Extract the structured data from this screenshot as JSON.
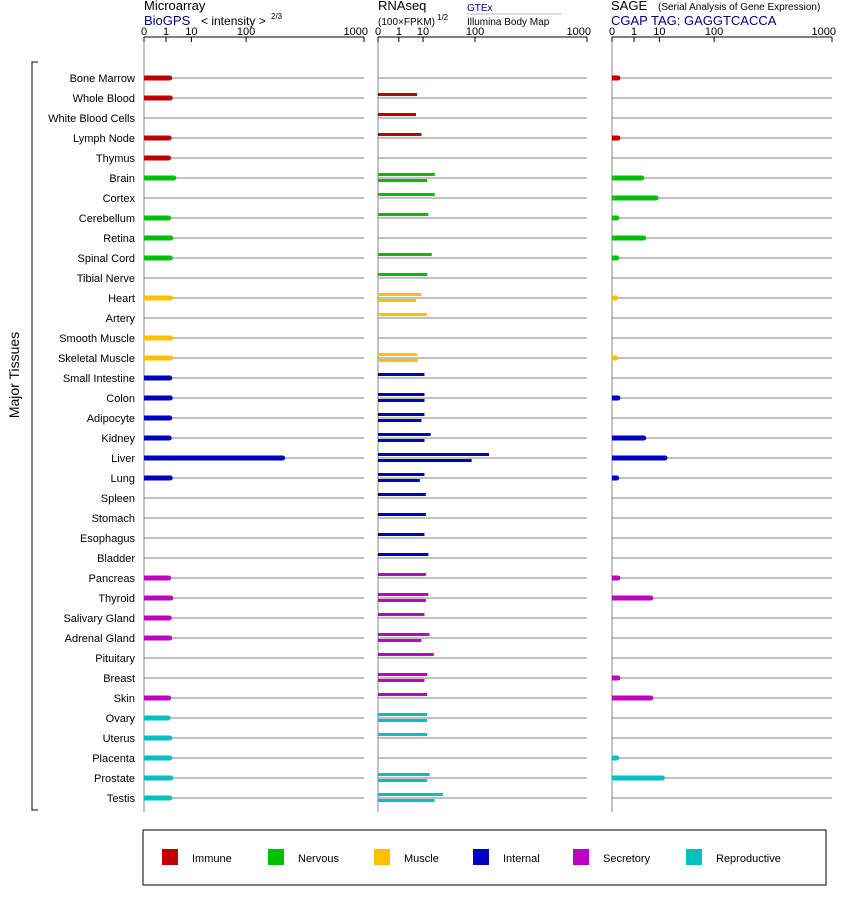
{
  "chart_data": {
    "type": "bar",
    "y_group_label": "Major Tissues",
    "x_scale": "cube-root-like (0, 1, 10, 100, 1000)",
    "legend": {
      "position": "bottom",
      "entries": [
        {
          "name": "Immune",
          "color": "#c00000"
        },
        {
          "name": "Nervous",
          "color": "#00c000"
        },
        {
          "name": "Muscle",
          "color": "#ffc000"
        },
        {
          "name": "Internal",
          "color": "#0000c0"
        },
        {
          "name": "Secretory",
          "color": "#c000c0"
        },
        {
          "name": "Reproductive",
          "color": "#00c0c0"
        }
      ]
    },
    "tissues": [
      {
        "name": "Bone Marrow",
        "category": "Immune"
      },
      {
        "name": "Whole Blood",
        "category": "Immune"
      },
      {
        "name": "White Blood Cells",
        "category": "Immune"
      },
      {
        "name": "Lymph Node",
        "category": "Immune"
      },
      {
        "name": "Thymus",
        "category": "Immune"
      },
      {
        "name": "Brain",
        "category": "Nervous"
      },
      {
        "name": "Cortex",
        "category": "Nervous"
      },
      {
        "name": "Cerebellum",
        "category": "Nervous"
      },
      {
        "name": "Retina",
        "category": "Nervous"
      },
      {
        "name": "Spinal Cord",
        "category": "Nervous"
      },
      {
        "name": "Tibial Nerve",
        "category": "Nervous"
      },
      {
        "name": "Heart",
        "category": "Muscle"
      },
      {
        "name": "Artery",
        "category": "Muscle"
      },
      {
        "name": "Smooth Muscle",
        "category": "Muscle"
      },
      {
        "name": "Skeletal Muscle",
        "category": "Muscle"
      },
      {
        "name": "Small Intestine",
        "category": "Internal"
      },
      {
        "name": "Colon",
        "category": "Internal"
      },
      {
        "name": "Adipocyte",
        "category": "Internal"
      },
      {
        "name": "Kidney",
        "category": "Internal"
      },
      {
        "name": "Liver",
        "category": "Internal"
      },
      {
        "name": "Lung",
        "category": "Internal"
      },
      {
        "name": "Spleen",
        "category": "Internal"
      },
      {
        "name": "Stomach",
        "category": "Internal"
      },
      {
        "name": "Esophagus",
        "category": "Internal"
      },
      {
        "name": "Bladder",
        "category": "Internal"
      },
      {
        "name": "Pancreas",
        "category": "Secretory"
      },
      {
        "name": "Thyroid",
        "category": "Secretory"
      },
      {
        "name": "Salivary Gland",
        "category": "Secretory"
      },
      {
        "name": "Adrenal Gland",
        "category": "Secretory"
      },
      {
        "name": "Pituitary",
        "category": "Secretory"
      },
      {
        "name": "Breast",
        "category": "Secretory"
      },
      {
        "name": "Skin",
        "category": "Secretory"
      },
      {
        "name": "Ovary",
        "category": "Reproductive"
      },
      {
        "name": "Uterus",
        "category": "Reproductive"
      },
      {
        "name": "Placenta",
        "category": "Reproductive"
      },
      {
        "name": "Prostate",
        "category": "Reproductive"
      },
      {
        "name": "Testis",
        "category": "Reproductive"
      }
    ],
    "panels": [
      {
        "title": "Microarray",
        "source": "BioGPS",
        "unit_prefix": "< intensity >",
        "unit_exponent": "2/3",
        "ticks": [
          "0",
          "1",
          "10",
          "100",
          "1000"
        ],
        "series": [
          {
            "source": "BioGPS",
            "values": [
              1.6,
              1.7,
              null,
              1.5,
              1.4,
              2.5,
              null,
              1.4,
              1.8,
              1.7,
              null,
              1.8,
              null,
              1.8,
              1.8,
              1.6,
              1.7,
              1.6,
              1.5,
              250,
              1.7,
              null,
              null,
              null,
              null,
              1.4,
              1.8,
              1.5,
              1.6,
              null,
              null,
              1.4,
              1.3,
              1.6,
              1.6,
              1.8,
              1.6
            ]
          }
        ]
      },
      {
        "title": "RNAseq",
        "unit": "(100×FPKM)",
        "unit_exponent": "1/2",
        "sources": [
          "GTEx",
          "Illumina Body Map"
        ],
        "ticks": [
          "0",
          "1",
          "10",
          "100",
          "1000"
        ],
        "series": [
          {
            "source": "GTEx",
            "values": [
              null,
              6.5,
              6.0,
              9.0,
              null,
              20.0,
              20.0,
              14.0,
              null,
              17.0,
              13.0,
              9.0,
              13.0,
              null,
              6.5,
              11.0,
              11.0,
              11.0,
              16.0,
              150.0,
              11.0,
              12.0,
              12.0,
              11.0,
              14.0,
              12.0,
              14.0,
              11.0,
              15.0,
              19.0,
              13.0,
              13.0,
              13.0,
              13.0,
              null,
              15.0,
              30.0
            ]
          },
          {
            "source": "Illumina Body Map",
            "values": [
              null,
              null,
              null,
              null,
              null,
              13.0,
              null,
              null,
              null,
              null,
              null,
              6.0,
              null,
              null,
              7.0,
              null,
              11.0,
              9.0,
              11.0,
              90.0,
              8.0,
              null,
              null,
              null,
              null,
              null,
              12.0,
              null,
              9.0,
              null,
              11.0,
              null,
              13.0,
              null,
              null,
              13.0,
              20.0
            ]
          }
        ]
      },
      {
        "title": "SAGE",
        "subtitle": "(Serial Analysis of Gene Expression)",
        "source": "CGAP TAG: GAGGTCACCA",
        "ticks": [
          "0",
          "1",
          "10",
          "100",
          "1000"
        ],
        "series": [
          {
            "source": "CGAP",
            "values": [
              0.02,
              null,
              null,
              0.02,
              null,
              2.5,
              8.0,
              0.01,
              3.0,
              0.01,
              null,
              0.005,
              null,
              null,
              0.005,
              null,
              0.02,
              null,
              3.0,
              14.0,
              0.01,
              null,
              null,
              null,
              null,
              0.02,
              5.5,
              null,
              null,
              null,
              0.02,
              5.5,
              null,
              null,
              0.01,
              12.0,
              null
            ]
          }
        ]
      }
    ]
  }
}
